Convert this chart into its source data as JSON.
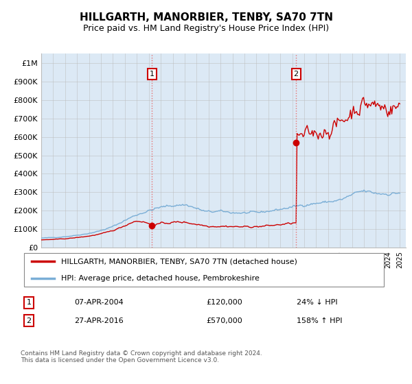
{
  "title": "HILLGARTH, MANORBIER, TENBY, SA70 7TN",
  "subtitle": "Price paid vs. HM Land Registry's House Price Index (HPI)",
  "ylabel_ticks": [
    "£1M",
    "£900K",
    "£800K",
    "£700K",
    "£600K",
    "£500K",
    "£400K",
    "£300K",
    "£200K",
    "£100K",
    "£0"
  ],
  "ytick_values": [
    1000000,
    900000,
    800000,
    700000,
    600000,
    500000,
    400000,
    300000,
    200000,
    100000,
    0
  ],
  "ytick_labels_display": [
    "£1M",
    "£900K",
    "£800K",
    "£700K",
    "£600K",
    "£500K",
    "£400K",
    "£300K",
    "£200K",
    "£100K",
    "£0"
  ],
  "xlim_start": 1995.0,
  "xlim_end": 2025.5,
  "ylim_min": 0,
  "ylim_max": 1050000,
  "background_color": "#dce9f5",
  "grid_color": "#bbbbbb",
  "red_color": "#cc0000",
  "blue_color": "#7aaed6",
  "legend_line1": "HILLGARTH, MANORBIER, TENBY, SA70 7TN (detached house)",
  "legend_line2": "HPI: Average price, detached house, Pembrokeshire",
  "sale1_year": 2004.27,
  "sale1_price": 120000,
  "sale1_label": "1",
  "sale1_date": "07-APR-2004",
  "sale1_amount": "£120,000",
  "sale1_hpi": "24% ↓ HPI",
  "sale2_year": 2016.32,
  "sale2_price": 570000,
  "sale2_label": "2",
  "sale2_date": "27-APR-2016",
  "sale2_amount": "£570,000",
  "sale2_hpi": "158% ↑ HPI",
  "footer": "Contains HM Land Registry data © Crown copyright and database right 2024.\nThis data is licensed under the Open Government Licence v3.0."
}
